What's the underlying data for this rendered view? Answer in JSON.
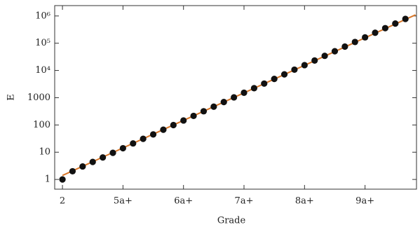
{
  "chart_data": {
    "type": "scatter",
    "x_label": "Grade",
    "y_label": "E",
    "log_y": true,
    "xlim": [
      -0.77,
      35.1
    ],
    "ylim": [
      0.44,
      2400000
    ],
    "xticks": [
      {
        "value": 0,
        "label": "2"
      },
      {
        "value": 6,
        "label": "5a+"
      },
      {
        "value": 12,
        "label": "6a+"
      },
      {
        "value": 18,
        "label": "7a+"
      },
      {
        "value": 24,
        "label": "8a+"
      },
      {
        "value": 30,
        "label": "9a+"
      }
    ],
    "yticks": [
      1,
      10,
      100,
      1000,
      {
        "value": 10000,
        "label": "10⁴"
      },
      {
        "value": 100000,
        "label": "10⁵"
      },
      {
        "value": 1000000,
        "label": "10⁶"
      }
    ],
    "series": [
      {
        "kind": "line",
        "color": "#d9782a",
        "x": [
          0,
          35
        ],
        "values": [
          1.4,
          1100000
        ]
      },
      {
        "kind": "points",
        "color": "#111111",
        "x": [
          0,
          1,
          2,
          3,
          4,
          5,
          6,
          7,
          8,
          9,
          10,
          11,
          12,
          13,
          14,
          15,
          16,
          17,
          18,
          19,
          20,
          21,
          22,
          23,
          24,
          25,
          26,
          27,
          28,
          29,
          30,
          31,
          32,
          33,
          34
        ],
        "values": [
          1,
          2,
          3,
          4.4,
          6.4,
          9.5,
          14,
          21,
          31,
          45,
          67,
          99,
          146,
          215,
          318,
          470,
          695,
          1030,
          1520,
          2240,
          3300,
          4890,
          7210,
          10700,
          15700,
          23200,
          34400,
          50700,
          75000,
          111000,
          164000,
          242000,
          357000,
          527000,
          778000
        ]
      }
    ]
  }
}
